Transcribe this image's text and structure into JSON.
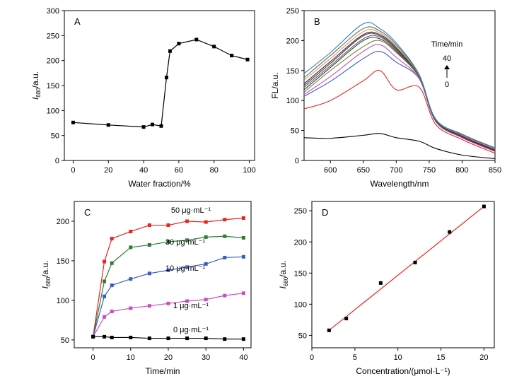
{
  "chart_data": [
    {
      "panel": "A",
      "type": "line",
      "xlabel": "Water fraction/%",
      "ylabel_main": "I",
      "ylabel_sub": "680",
      "ylabel_unit": "/a.u.",
      "xlim": [
        -5,
        103
      ],
      "ylim": [
        0,
        300
      ],
      "xticks": [
        0,
        20,
        40,
        60,
        80,
        100
      ],
      "yticks": [
        0,
        50,
        100,
        150,
        200,
        250,
        300
      ],
      "marker": "square",
      "series": [
        {
          "color": "#000000",
          "x": [
            0,
            20,
            40,
            45,
            50,
            53,
            55,
            60,
            70,
            80,
            90,
            99
          ],
          "y": [
            76,
            71,
            67,
            72,
            69,
            166,
            219,
            234,
            242,
            228,
            210,
            202
          ]
        }
      ]
    },
    {
      "panel": "B",
      "type": "line",
      "xlabel": "Wavelength/nm",
      "ylabel": "FL/a.u.",
      "xlim": [
        560,
        850
      ],
      "ylim": [
        0,
        250
      ],
      "xticks": [
        600,
        650,
        700,
        750,
        800,
        850
      ],
      "yticks": [
        0,
        50,
        100,
        150,
        200,
        250
      ],
      "legend_title": "Time/min",
      "legend_top": "40",
      "legend_bottom": "0",
      "legend_arrow": "up-arrow",
      "series": [
        {
          "color": "#000000",
          "x": [
            560,
            600,
            650,
            675,
            700,
            735,
            760,
            800,
            850
          ],
          "y": [
            38,
            37,
            42,
            45,
            38,
            32,
            20,
            9,
            3
          ]
        },
        {
          "color": "#e8251f",
          "x": [
            560,
            600,
            650,
            675,
            700,
            735,
            760,
            800,
            850
          ],
          "y": [
            86,
            100,
            133,
            150,
            118,
            122,
            60,
            35,
            12
          ]
        },
        {
          "color": "#3b5cc4",
          "x": [
            560,
            600,
            650,
            675,
            700,
            735,
            760,
            800,
            850
          ],
          "y": [
            107,
            132,
            170,
            182,
            164,
            136,
            65,
            38,
            15
          ]
        },
        {
          "color": "#c94fbf",
          "x": [
            560,
            600,
            650,
            675,
            700,
            735,
            760,
            800,
            850
          ],
          "y": [
            110,
            140,
            182,
            193,
            172,
            136,
            65,
            38,
            15
          ]
        },
        {
          "color": "#7b8a2a",
          "x": [
            560,
            600,
            650,
            675,
            700,
            735,
            760,
            800,
            850
          ],
          "y": [
            114,
            150,
            190,
            200,
            180,
            138,
            66,
            39,
            16
          ]
        },
        {
          "color": "#4a2a7a",
          "x": [
            560,
            600,
            650,
            675,
            700,
            735,
            760,
            800,
            850
          ],
          "y": [
            118,
            155,
            200,
            203,
            182,
            139,
            66,
            39,
            16
          ]
        },
        {
          "color": "#3e7f3a",
          "x": [
            560,
            600,
            650,
            675,
            700,
            735,
            760,
            800,
            850
          ],
          "y": [
            122,
            158,
            203,
            206,
            184,
            139,
            66,
            40,
            17
          ]
        },
        {
          "color": "#7a2a2a",
          "x": [
            560,
            600,
            650,
            675,
            700,
            735,
            760,
            800,
            850
          ],
          "y": [
            125,
            162,
            208,
            208,
            186,
            140,
            67,
            40,
            17
          ]
        },
        {
          "color": "#1f2a7a",
          "x": [
            560,
            600,
            650,
            675,
            700,
            735,
            760,
            800,
            850
          ],
          "y": [
            128,
            165,
            210,
            210,
            188,
            140,
            67,
            41,
            18
          ]
        },
        {
          "color": "#d9a23a",
          "x": [
            560,
            600,
            650,
            675,
            700,
            735,
            760,
            800,
            850
          ],
          "y": [
            134,
            170,
            215,
            213,
            190,
            141,
            68,
            42,
            19
          ]
        },
        {
          "color": "#6a6a6a",
          "x": [
            560,
            600,
            650,
            675,
            700,
            735,
            760,
            800,
            850
          ],
          "y": [
            138,
            175,
            220,
            216,
            193,
            142,
            68,
            43,
            20
          ]
        },
        {
          "color": "#2f7fb8",
          "x": [
            560,
            600,
            650,
            675,
            700,
            735,
            760,
            800,
            850
          ],
          "y": [
            145,
            180,
            228,
            220,
            196,
            143,
            69,
            44,
            21
          ]
        }
      ]
    },
    {
      "panel": "C",
      "type": "line",
      "xlabel": "Time/min",
      "ylabel_main": "I",
      "ylabel_sub": "680",
      "ylabel_unit": "/a.u.",
      "xlim": [
        -5,
        42
      ],
      "ylim": [
        40,
        225
      ],
      "xticks": [
        0,
        10,
        20,
        30,
        40
      ],
      "yticks": [
        50,
        100,
        150,
        200
      ],
      "marker": "square",
      "series": [
        {
          "name": "50 μg·mL⁻¹",
          "color": "#e8251f",
          "x": [
            0,
            3,
            5,
            10,
            15,
            20,
            25,
            30,
            35,
            40
          ],
          "y": [
            54,
            149,
            178,
            187,
            195,
            195,
            200,
            199,
            202,
            204
          ]
        },
        {
          "name": "30 μg·mL⁻¹",
          "color": "#2e7d32",
          "x": [
            0,
            3,
            5,
            10,
            15,
            20,
            25,
            30,
            35,
            40
          ],
          "y": [
            54,
            124,
            147,
            167,
            170,
            174,
            176,
            180,
            181,
            179
          ]
        },
        {
          "name": "10 μg·mL⁻¹",
          "color": "#3b5cc4",
          "x": [
            0,
            3,
            5,
            10,
            15,
            20,
            25,
            30,
            35,
            40
          ],
          "y": [
            54,
            105,
            119,
            127,
            134,
            138,
            142,
            146,
            154,
            155
          ]
        },
        {
          "name": "1 μg·mL⁻¹",
          "color": "#c94fbf",
          "x": [
            0,
            3,
            5,
            10,
            15,
            20,
            25,
            30,
            35,
            40
          ],
          "y": [
            54,
            79,
            86,
            90,
            93,
            96,
            99,
            101,
            106,
            109
          ]
        },
        {
          "name": "0 μg·mL⁻¹",
          "color": "#000000",
          "x": [
            0,
            3,
            5,
            10,
            15,
            20,
            25,
            30,
            35,
            40
          ],
          "y": [
            54,
            54,
            53,
            53,
            52,
            52,
            52,
            52,
            51,
            51
          ]
        }
      ]
    },
    {
      "panel": "D",
      "type": "scatter",
      "xlabel": "Concentration/(μmol·L⁻¹)",
      "ylabel_main": "I",
      "ylabel_sub": "680",
      "ylabel_unit": "/a.u.",
      "xlim": [
        0,
        21.2
      ],
      "ylim": [
        30,
        265
      ],
      "xticks": [
        0,
        5,
        10,
        15,
        20
      ],
      "yticks": [
        50,
        100,
        150,
        200,
        250
      ],
      "marker": "square",
      "fit_color": "#e8251f",
      "fit": {
        "x": [
          2,
          20
        ],
        "y": [
          58,
          257
        ]
      },
      "series": [
        {
          "color": "#000000",
          "x": [
            2,
            4,
            8,
            12,
            16,
            20
          ],
          "y": [
            58,
            77,
            134,
            167,
            216,
            257
          ]
        }
      ]
    }
  ]
}
